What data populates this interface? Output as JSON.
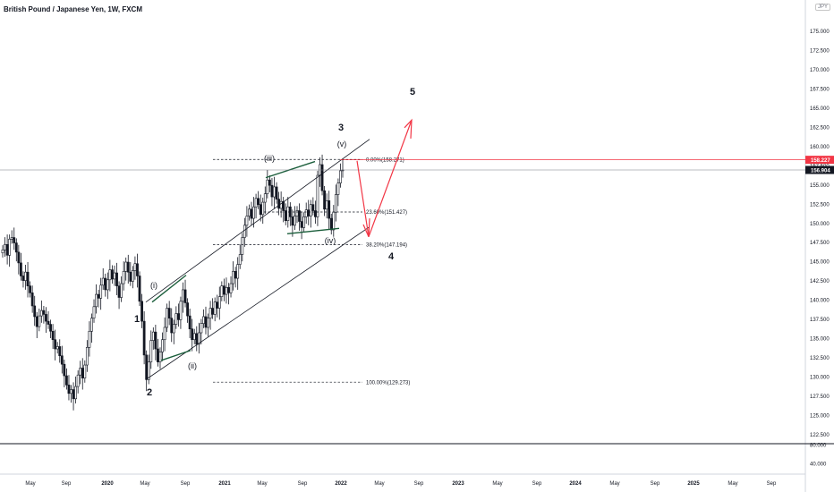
{
  "header": {
    "title": "British Pound / Japanese Yen, 1W, FXCM",
    "currency": "JPY"
  },
  "colors": {
    "candle": "#131722",
    "wedge": "#1b5e3b",
    "target": "#f23645",
    "grid": "#d1d4dc"
  },
  "chart_data": {
    "type": "candlestick",
    "title": "British Pound / Japanese Yen, 1W, FXCM",
    "ylim": [
      122.5,
      176.5
    ],
    "y_ticks": [
      "175.000",
      "172.500",
      "170.000",
      "167.500",
      "165.000",
      "162.500",
      "160.000",
      "157.500",
      "155.000",
      "152.500",
      "150.000",
      "147.500",
      "145.000",
      "142.500",
      "140.000",
      "137.500",
      "135.000",
      "132.500",
      "130.000",
      "127.500",
      "125.000",
      "122.500"
    ],
    "volume_ticks": [
      "80.000",
      "40.000"
    ],
    "x_ticks": [
      "May",
      "Sep",
      "2020",
      "May",
      "Sep",
      "2021",
      "May",
      "Sep",
      "2022",
      "May",
      "Sep",
      "2023",
      "May",
      "Sep",
      "2024",
      "May",
      "Sep",
      "2025",
      "May",
      "Sep"
    ],
    "price_labels": {
      "line_1": "158.227",
      "line_2": "156.904"
    },
    "series": [
      {
        "name": "",
        "values": [
          146.5,
          147.2,
          145.8,
          147.9,
          148.1,
          147.4,
          146.2,
          144.8,
          143.1,
          142.5,
          143.6,
          141.8,
          140.9,
          139.2,
          137.8,
          136.5,
          137.9,
          138.6,
          138.1,
          137.2,
          136.8,
          135.9,
          134.8,
          133.6,
          133.9,
          132.7,
          131.6,
          130.1,
          128.9,
          127.8,
          128.3,
          127.1,
          128.7,
          130.2,
          131.1,
          129.8,
          131.5,
          133.8,
          135.9,
          137.6,
          139.1,
          140.7,
          140.2,
          141.9,
          142.8,
          141.3,
          142.6,
          143.9,
          142.7,
          143.5,
          141.8,
          140.3,
          142.1,
          143.7,
          144.9,
          143.6,
          142.4,
          143.8,
          144.7,
          143.1,
          139.8,
          137.2,
          132.8,
          129.6,
          131.9,
          134.7,
          135.8,
          133.6,
          131.9,
          133.2,
          134.8,
          136.4,
          138.9,
          137.6,
          135.7,
          136.8,
          138.2,
          137.4,
          139.8,
          141.3,
          139.6,
          137.9,
          136.2,
          134.8,
          135.6,
          134.2,
          135.7,
          136.9,
          137.8,
          136.4,
          137.6,
          138.9,
          138.1,
          139.7,
          138.9,
          140.4,
          141.8,
          140.7,
          141.6,
          140.9,
          142.1,
          143.7,
          142.8,
          144.6,
          145.9,
          148.1,
          149.7,
          150.9,
          151.8,
          150.6,
          152.1,
          153.2,
          152.4,
          151.1,
          152.7,
          153.8,
          155.6,
          154.9,
          153.4,
          154.7,
          153.1,
          151.9,
          152.8,
          151.6,
          150.3,
          152.1,
          150.8,
          149.7,
          150.9,
          151.6,
          150.2,
          149.4,
          150.8,
          151.7,
          150.9,
          152.4,
          151.6,
          150.8,
          156.2,
          157.6,
          154.2,
          151.8,
          152.9,
          150.6,
          149.1,
          151.4,
          153.7,
          155.2,
          156.8,
          156.9
        ]
      }
    ]
  },
  "fib_levels": [
    {
      "label": "0.00%(158.271)",
      "value": 158.271
    },
    {
      "label": "23.60%(151.427)",
      "value": 151.427
    },
    {
      "label": "38.20%(147.194)",
      "value": 147.194
    },
    {
      "label": "100.00%(129.273)",
      "value": 129.273
    }
  ],
  "wave_labels": [
    {
      "text": "1",
      "key": "w1"
    },
    {
      "text": "2",
      "key": "w2"
    },
    {
      "text": "3",
      "key": "w3"
    },
    {
      "text": "4",
      "key": "w4"
    },
    {
      "text": "5",
      "key": "w5"
    },
    {
      "text": "(i)",
      "key": "wi"
    },
    {
      "text": "(ii)",
      "key": "wii"
    },
    {
      "text": "(iii)",
      "key": "wiii"
    },
    {
      "text": "(iv)",
      "key": "wiv"
    },
    {
      "text": "(v)",
      "key": "wv"
    }
  ]
}
